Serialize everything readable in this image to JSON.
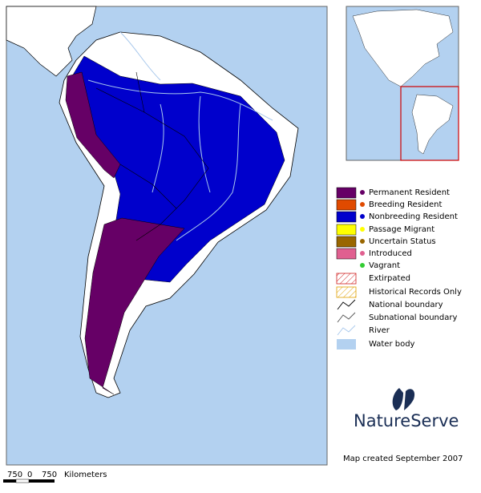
{
  "legend": {
    "items": [
      {
        "label": "Permanent Resident"
      },
      {
        "label": "Breeding Resident"
      },
      {
        "label": "Nonbreeding Resident"
      },
      {
        "label": "Passage Migrant"
      },
      {
        "label": "Uncertain Status"
      },
      {
        "label": "Introduced"
      },
      {
        "label": "Vagrant"
      },
      {
        "label": "Extirpated"
      },
      {
        "label": "Historical Records Only"
      },
      {
        "label": "National boundary"
      },
      {
        "label": "Subnational boundary"
      },
      {
        "label": "River"
      },
      {
        "label": "Water body"
      }
    ]
  },
  "scale": {
    "ticks": [
      750,
      0,
      750
    ],
    "unit": "Kilometers"
  },
  "logo": {
    "name": "NatureServe"
  },
  "footer": {
    "credit": "Map created September 2007"
  }
}
